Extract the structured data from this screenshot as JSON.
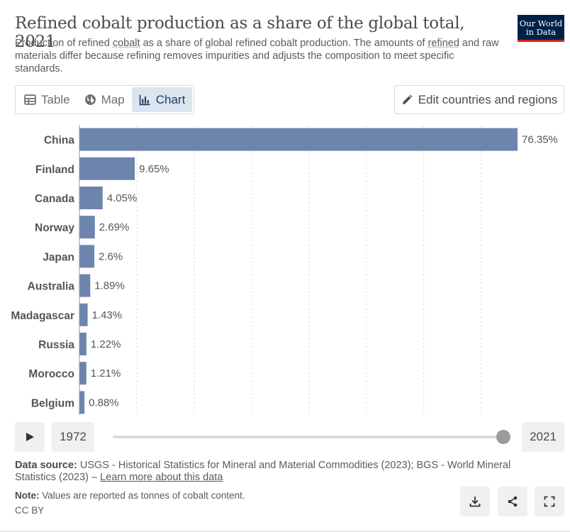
{
  "header": {
    "title": "Refined cobalt production as a share of the global total, 2021",
    "subtitle_parts": [
      "Production of refined ",
      "cobalt",
      " as a share of global refined cobalt production. The amounts of ",
      "refined",
      " and raw materials differ because refining removes impurities and adjusts the composition to meet specific standards."
    ],
    "logo_line1": "Our World",
    "logo_line2": "in Data"
  },
  "tabs": [
    {
      "label": "Table",
      "icon": "table-icon"
    },
    {
      "label": "Map",
      "icon": "globe-icon"
    },
    {
      "label": "Chart",
      "icon": "chart-icon",
      "active": true
    }
  ],
  "edit_button": {
    "label": "Edit countries and regions",
    "icon": "pencil-icon"
  },
  "timeline": {
    "start_year": "1972",
    "end_year": "2021",
    "play_icon": "play-icon"
  },
  "footer": {
    "source_label": "Data source:",
    "source_text": " USGS - Historical Statistics for Mineral and Material Commodities (2023); BGS - World Mineral Statistics (2023) – ",
    "source_link": "Learn more about this data",
    "note_label": "Note:",
    "note_text": " Values are reported as tonnes of cobalt content.",
    "license": "CC BY",
    "buttons": [
      "download-icon",
      "share-icon",
      "fullscreen-icon"
    ]
  },
  "colors": {
    "bar": "#6d84ad",
    "grid": "#dddddd",
    "active_tab_bg": "#dbe5f0",
    "logo_bg": "#002147",
    "logo_accent": "#ce261e"
  },
  "chart_data": {
    "type": "bar",
    "orientation": "horizontal",
    "title": "Refined cobalt production as a share of the global total, 2021",
    "categories": [
      "China",
      "Finland",
      "Canada",
      "Norway",
      "Japan",
      "Australia",
      "Madagascar",
      "Russia",
      "Morocco",
      "Belgium"
    ],
    "values": [
      76.35,
      9.65,
      4.05,
      2.69,
      2.6,
      1.89,
      1.43,
      1.22,
      1.21,
      0.88
    ],
    "value_labels": [
      "76.35%",
      "9.65%",
      "4.05%",
      "2.69%",
      "2.6%",
      "1.89%",
      "1.43%",
      "1.22%",
      "1.21%",
      "0.88%"
    ],
    "xlim": [
      0,
      76.35
    ],
    "unit": "%",
    "grid": true
  }
}
